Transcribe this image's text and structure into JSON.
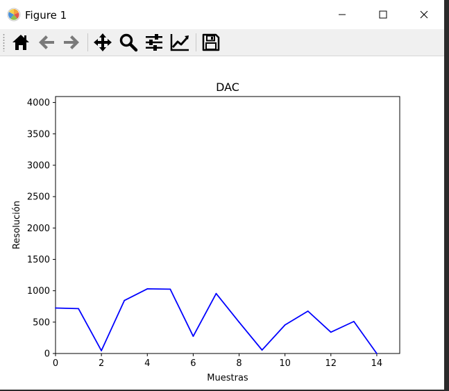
{
  "window": {
    "title": "Figure 1",
    "icons": {
      "app": "matplotlib-logo-icon",
      "minimize": "minimize-icon",
      "maximize": "maximize-icon",
      "close": "close-icon"
    }
  },
  "toolbar": {
    "buttons": [
      {
        "name": "home-icon",
        "tooltip": ""
      },
      {
        "name": "back-arrow-icon",
        "tooltip": ""
      },
      {
        "name": "forward-arrow-icon",
        "tooltip": ""
      },
      {
        "name": "pan-move-icon",
        "tooltip": ""
      },
      {
        "name": "zoom-magnifier-icon",
        "tooltip": ""
      },
      {
        "name": "configure-subplots-icon",
        "tooltip": ""
      },
      {
        "name": "edit-axis-icon",
        "tooltip": ""
      },
      {
        "name": "save-disk-icon",
        "tooltip": ""
      }
    ],
    "colors": {
      "enabled": "#000000",
      "disabled": "#7a7a7a"
    }
  },
  "chart_data": {
    "type": "line",
    "title": "DAC",
    "xlabel": "Muestras",
    "ylabel": "Resolución",
    "xlim": [
      0,
      15
    ],
    "ylim": [
      0,
      4095
    ],
    "xticks": [
      0,
      2,
      4,
      6,
      8,
      10,
      12,
      14
    ],
    "xtick_labels": [
      "0",
      "2",
      "4",
      "6",
      "8",
      "10",
      "12",
      "14"
    ],
    "yticks": [
      0,
      500,
      1000,
      1500,
      2000,
      2500,
      3000,
      3500,
      4000
    ],
    "ytick_labels": [
      "0",
      "500",
      "1000",
      "1500",
      "2000",
      "2500",
      "3000",
      "3500",
      "4000"
    ],
    "grid": false,
    "series": [
      {
        "color": "#0000ff",
        "x": [
          0,
          1,
          2,
          3,
          4,
          5,
          6,
          7,
          8,
          9,
          10,
          11,
          12,
          13,
          14
        ],
        "values": [
          725,
          715,
          45,
          845,
          1030,
          1025,
          275,
          955,
          500,
          55,
          455,
          675,
          340,
          510,
          0
        ]
      }
    ]
  }
}
